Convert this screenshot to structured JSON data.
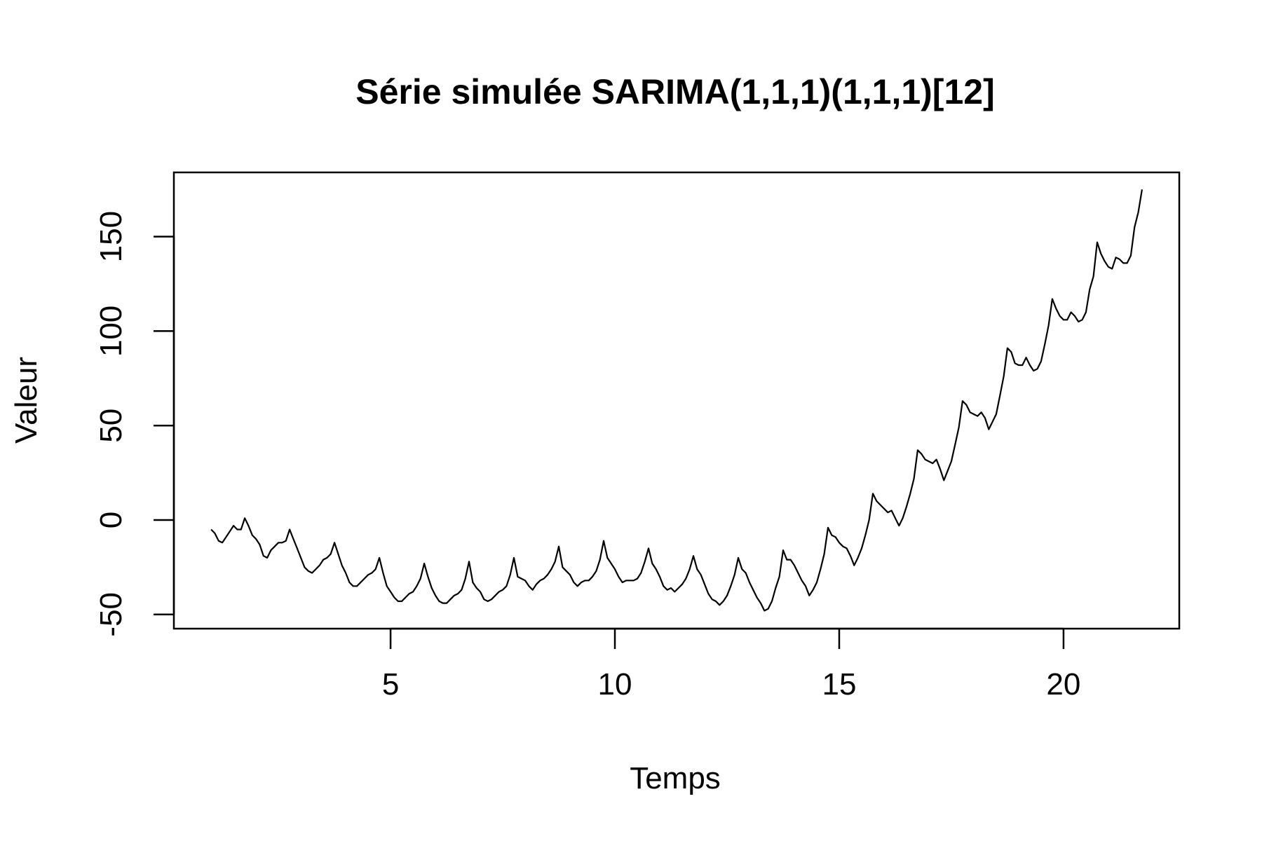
{
  "chart_data": {
    "type": "line",
    "title": "Série simulée SARIMA(1,1,1)(1,1,1)[12]",
    "xlabel": "Temps",
    "ylabel": "Valeur",
    "xlim": [
      0.17,
      22.58
    ],
    "ylim": [
      -57.5,
      184
    ],
    "x_ticks": [
      5,
      10,
      15,
      20
    ],
    "y_ticks": [
      -50,
      0,
      50,
      100,
      150
    ],
    "grid": false,
    "line_color": "#000000",
    "start": 1,
    "frequency": 12,
    "series": [
      {
        "values": [
          -5,
          -7,
          -11,
          -12,
          -9,
          -6,
          -3,
          -5,
          -5,
          1,
          -3,
          -8,
          -10,
          -13,
          -19,
          -20,
          -16,
          -14,
          -12,
          -12,
          -11,
          -5,
          -10,
          -15,
          -20,
          -25,
          -27,
          -28,
          -26,
          -24,
          -21,
          -20,
          -18,
          -12,
          -18,
          -24,
          -28,
          -33,
          -35,
          -35,
          -33,
          -31,
          -29,
          -28,
          -26,
          -20,
          -28,
          -35,
          -38,
          -41,
          -43,
          -43,
          -41,
          -39,
          -38,
          -35,
          -31,
          -23,
          -30,
          -36,
          -40,
          -43,
          -44,
          -44,
          -42,
          -40,
          -39,
          -37,
          -31,
          -22,
          -33,
          -36,
          -38,
          -42,
          -43,
          -42,
          -40,
          -38,
          -37,
          -35,
          -29,
          -20,
          -30,
          -31,
          -32,
          -35,
          -37,
          -34,
          -32,
          -31,
          -29,
          -26,
          -22,
          -14,
          -25,
          -27,
          -29,
          -33,
          -35,
          -33,
          -32,
          -32,
          -30,
          -27,
          -21,
          -11,
          -20,
          -23,
          -26,
          -30,
          -33,
          -32,
          -32,
          -32,
          -31,
          -28,
          -22,
          -15,
          -23,
          -26,
          -30,
          -35,
          -37,
          -36,
          -38,
          -36,
          -34,
          -31,
          -26,
          -19,
          -26,
          -29,
          -34,
          -39,
          -42,
          -43,
          -45,
          -43,
          -40,
          -35,
          -29,
          -20,
          -26,
          -28,
          -33,
          -37,
          -41,
          -44,
          -48,
          -47,
          -43,
          -36,
          -30,
          -16,
          -21,
          -21,
          -24,
          -28,
          -32,
          -35,
          -40,
          -37,
          -33,
          -26,
          -18,
          -4,
          -8,
          -9,
          -12,
          -14,
          -15,
          -19,
          -24,
          -20,
          -15,
          -8,
          0,
          14,
          10,
          8,
          6,
          4,
          5,
          1,
          -3,
          1,
          7,
          14,
          22,
          37,
          35,
          32,
          31,
          30,
          32,
          27,
          21,
          26,
          31,
          40,
          49,
          63,
          61,
          57,
          56,
          55,
          57,
          54,
          48,
          52,
          56,
          66,
          76,
          91,
          89,
          83,
          82,
          82,
          86,
          82,
          79,
          80,
          84,
          93,
          103,
          117,
          112,
          108,
          106,
          106,
          110,
          108,
          105,
          106,
          110,
          122,
          129,
          147,
          141,
          137,
          134,
          133,
          139,
          138,
          136,
          136,
          140,
          155,
          163,
          175
        ]
      }
    ]
  }
}
